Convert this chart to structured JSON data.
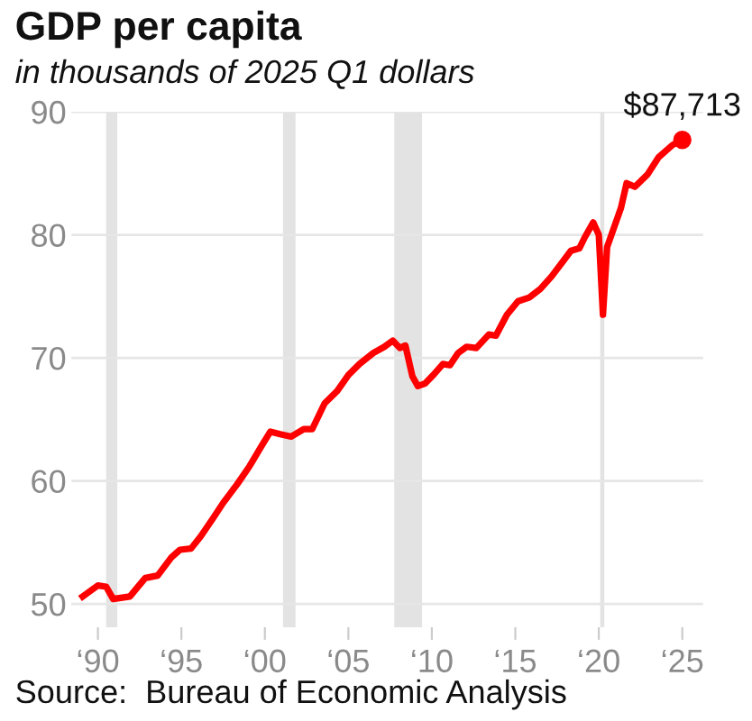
{
  "chart_data": {
    "type": "line",
    "title": "GDP per capita",
    "subtitle": "in thousands of 2025 Q1 dollars",
    "annotations": [
      {
        "text": "$87,713",
        "x": "2025-01",
        "y": 87.713
      },
      "Source:  Bureau of Economic Analysis"
    ],
    "series": [
      {
        "color": "#ff0000",
        "marker": "none",
        "x": [
          "1989-02",
          "1989-07",
          "1990-01",
          "1990-07",
          "1990-12",
          "1991-12",
          "1992-11",
          "1993-08",
          "1994-06",
          "1994-12",
          "1995-08",
          "1996-03",
          "1996-12",
          "1997-07",
          "1998-05",
          "1999-02",
          "1999-11",
          "2000-05",
          "2000-12",
          "2001-08",
          "2002-05",
          "2002-11",
          "2003-08",
          "2004-05",
          "2005-01",
          "2005-09",
          "2006-07",
          "2007-03",
          "2007-09",
          "2008-02",
          "2008-06",
          "2008-11",
          "2009-03",
          "2009-08",
          "2010-02",
          "2010-09",
          "2011-02",
          "2011-08",
          "2012-02",
          "2012-09",
          "2013-06",
          "2013-11",
          "2014-07",
          "2015-03",
          "2015-11",
          "2016-07",
          "2017-03",
          "2017-11",
          "2018-05",
          "2018-11",
          "2019-03",
          "2019-09",
          "2020-01",
          "2020-04",
          "2020-07",
          "2021-05",
          "2021-09",
          "2022-03",
          "2022-12",
          "2023-08",
          "2024-06",
          "2025-01"
        ],
        "values": [
          50.6,
          51.0,
          51.5,
          51.4,
          50.4,
          50.6,
          52.1,
          52.3,
          53.8,
          54.4,
          54.5,
          55.5,
          57.0,
          58.2,
          59.7,
          61.2,
          62.9,
          64.0,
          63.8,
          63.6,
          64.2,
          64.2,
          66.3,
          67.3,
          68.6,
          69.5,
          70.4,
          70.9,
          71.4,
          70.8,
          71.0,
          68.5,
          67.7,
          67.9,
          68.6,
          69.5,
          69.4,
          70.4,
          70.9,
          70.8,
          71.9,
          71.8,
          73.5,
          74.6,
          74.9,
          75.6,
          76.6,
          77.8,
          78.7,
          78.9,
          79.8,
          81.0,
          80.0,
          73.5,
          79.0,
          82.2,
          84.2,
          83.9,
          84.9,
          86.3,
          87.3,
          87.713
        ]
      },
      {
        "type": "scatter",
        "marker": "circle",
        "color": "#ff0000",
        "x": [
          "2025-01"
        ],
        "values": [
          87.713
        ]
      }
    ],
    "xlim": [
      "1988-06",
      "2026-04"
    ],
    "ylim": [
      48.1,
      90
    ],
    "xticks": [
      {
        "value": "1990",
        "label": "‘90"
      },
      {
        "value": "1995",
        "label": "‘95"
      },
      {
        "value": "2000",
        "label": "‘00"
      },
      {
        "value": "2005",
        "label": "‘05"
      },
      {
        "value": "2010",
        "label": "‘10"
      },
      {
        "value": "2015",
        "label": "‘15"
      },
      {
        "value": "2020",
        "label": "‘20"
      },
      {
        "value": "2025",
        "label": "‘25"
      }
    ],
    "yticks": [
      50,
      60,
      70,
      80,
      90
    ],
    "bands": [
      {
        "axis": "x",
        "from": "1990-07",
        "to": "1991-03",
        "color": "#e3e3e3"
      },
      {
        "axis": "x",
        "from": "2001-02",
        "to": "2001-11",
        "color": "#e3e3e3"
      },
      {
        "axis": "x",
        "from": "2007-10",
        "to": "2009-06",
        "color": "#e3e3e3"
      },
      {
        "axis": "x",
        "from": "2020-02",
        "to": "2020-05",
        "color": "#e3e3e3"
      }
    ],
    "grid": "y",
    "line_style": "solid",
    "legend": false
  }
}
